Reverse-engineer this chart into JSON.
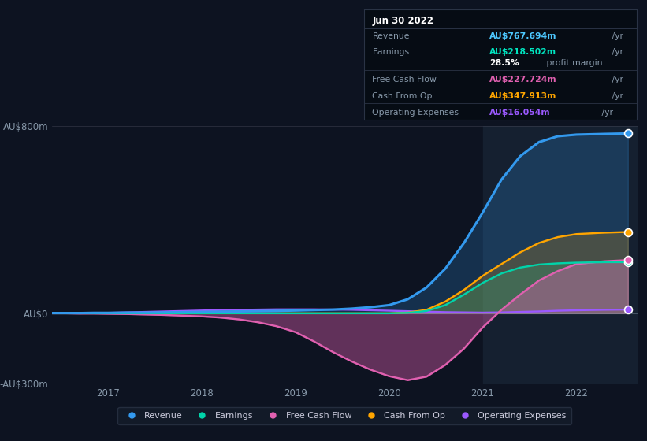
{
  "bg_color": "#0d1321",
  "plot_bg_color": "#0d1321",
  "box_bg_color": "#060c14",
  "box_border_color": "#2a3345",
  "title_box": {
    "date": "Jun 30 2022",
    "rows": [
      {
        "label": "Revenue",
        "value": "AU$767.694m",
        "value_color": "#4dc8ff",
        "suffix": "/yr"
      },
      {
        "label": "Earnings",
        "value": "AU$218.502m",
        "value_color": "#00e5c0",
        "suffix": "/yr"
      },
      {
        "label": "",
        "value": "28.5%",
        "value_color": "#ffffff",
        "suffix": "profit margin"
      },
      {
        "label": "Free Cash Flow",
        "value": "AU$227.724m",
        "value_color": "#e060b0",
        "suffix": "/yr"
      },
      {
        "label": "Cash From Op",
        "value": "AU$347.913m",
        "value_color": "#ffa500",
        "suffix": "/yr"
      },
      {
        "label": "Operating Expenses",
        "value": "AU$16.054m",
        "value_color": "#9b59ff",
        "suffix": "/yr"
      }
    ]
  },
  "x_years": [
    2016.4,
    2016.55,
    2016.7,
    2016.85,
    2017.0,
    2017.2,
    2017.4,
    2017.6,
    2017.8,
    2018.0,
    2018.2,
    2018.4,
    2018.6,
    2018.8,
    2019.0,
    2019.2,
    2019.4,
    2019.6,
    2019.8,
    2020.0,
    2020.2,
    2020.4,
    2020.6,
    2020.8,
    2021.0,
    2021.2,
    2021.4,
    2021.6,
    2021.8,
    2022.0,
    2022.3,
    2022.55
  ],
  "revenue": [
    1,
    1,
    1,
    2,
    2,
    3,
    3,
    4,
    5,
    6,
    7,
    8,
    9,
    10,
    12,
    14,
    16,
    20,
    26,
    35,
    60,
    110,
    190,
    300,
    430,
    570,
    670,
    730,
    755,
    762,
    765,
    767
  ],
  "earnings": [
    0,
    0,
    0,
    0,
    0,
    0,
    0,
    0,
    0,
    0,
    0,
    0,
    0,
    0,
    0,
    0,
    0,
    0,
    0,
    0,
    2,
    10,
    35,
    80,
    130,
    170,
    195,
    208,
    213,
    216,
    218,
    218
  ],
  "free_cash": [
    0,
    0,
    -1,
    -1,
    -2,
    -3,
    -5,
    -7,
    -10,
    -13,
    -18,
    -26,
    -38,
    -55,
    -80,
    -120,
    -165,
    -205,
    -240,
    -268,
    -285,
    -270,
    -220,
    -150,
    -60,
    15,
    80,
    140,
    180,
    210,
    222,
    227
  ],
  "cash_from_op": [
    0,
    0,
    0,
    0,
    0,
    0,
    0,
    0,
    0,
    0,
    0,
    0,
    0,
    0,
    0,
    0,
    0,
    0,
    0,
    0,
    3,
    15,
    50,
    100,
    160,
    210,
    260,
    300,
    325,
    338,
    344,
    347
  ],
  "op_expenses": [
    0,
    0,
    0,
    1,
    2,
    4,
    6,
    8,
    10,
    12,
    14,
    15,
    16,
    17,
    17,
    17,
    16,
    15,
    13,
    11,
    9,
    7,
    5,
    4,
    3,
    4,
    6,
    8,
    11,
    13,
    15,
    16
  ],
  "revenue_color": "#3399ee",
  "earnings_color": "#00d4aa",
  "free_cash_color": "#e060b0",
  "cash_from_op_color": "#ffa500",
  "op_expenses_color": "#9b59ff",
  "highlight_x_start": 2021.0,
  "highlight_x_end": 2022.65,
  "ylim": [
    -300,
    800
  ],
  "xlim": [
    2016.4,
    2022.65
  ],
  "ytick_vals": [
    -300,
    0,
    800
  ],
  "ytick_labels": [
    "-AU$300m",
    "AU$0",
    "AU$800m"
  ],
  "xtick_positions": [
    2017,
    2018,
    2019,
    2020,
    2021,
    2022
  ],
  "xtick_labels": [
    "2017",
    "2018",
    "2019",
    "2020",
    "2021",
    "2022"
  ],
  "legend": [
    {
      "label": "Revenue",
      "color": "#3399ee"
    },
    {
      "label": "Earnings",
      "color": "#00d4aa"
    },
    {
      "label": "Free Cash Flow",
      "color": "#e060b0"
    },
    {
      "label": "Cash From Op",
      "color": "#ffa500"
    },
    {
      "label": "Operating Expenses",
      "color": "#9b59ff"
    }
  ]
}
